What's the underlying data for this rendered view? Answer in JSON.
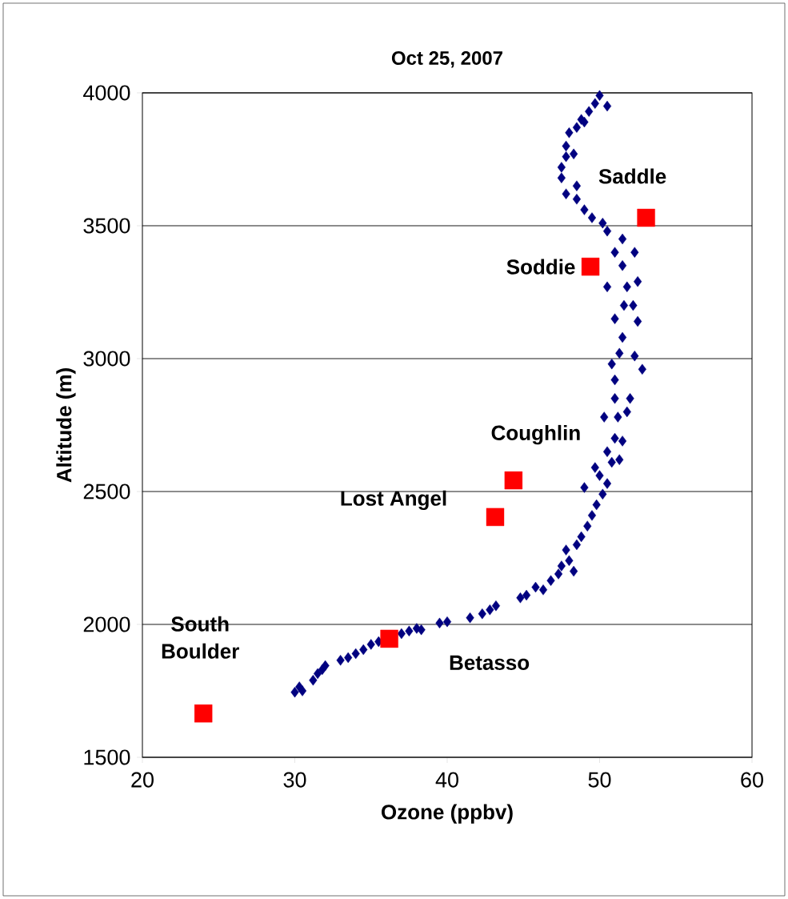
{
  "chart_data": {
    "type": "scatter",
    "title": "Oct 25, 2007",
    "xlabel": "Ozone (ppbv)",
    "ylabel": "Altitude (m)",
    "xlim": [
      20,
      60
    ],
    "ylim": [
      1500,
      4000
    ],
    "xticks": [
      20,
      30,
      40,
      50,
      60
    ],
    "yticks": [
      1500,
      2000,
      2500,
      3000,
      3500,
      4000
    ],
    "grid": "y",
    "series": [
      {
        "color": "#000080",
        "marker": "diamond",
        "x": [
          30,
          30.3,
          30.5,
          31.2,
          31.5,
          31.8,
          32,
          33,
          33.5,
          34,
          34.5,
          35,
          35.5,
          37,
          37.5,
          38,
          38.3,
          39.5,
          40,
          41.5,
          42.3,
          42.8,
          43.2,
          44.8,
          45.2,
          45.8,
          46.3,
          46.8,
          47.3,
          47.5,
          48,
          48.3,
          47.8,
          48.5,
          48.8,
          49.2,
          49.5,
          49.8,
          50.2,
          49,
          50.5,
          50,
          49.7,
          50.8,
          50.5,
          51.3,
          51,
          51.5,
          50.3,
          51.2,
          51,
          51.8,
          51,
          52,
          50.8,
          51.3,
          52.3,
          52.8,
          51.5,
          52.5,
          51,
          51.6,
          52.2,
          50.5,
          51.8,
          52.5,
          51.5,
          52.3,
          51,
          51.5,
          50.5,
          50.2,
          49.5,
          49,
          48.5,
          47.8,
          48.5,
          47.5,
          47.5,
          47.8,
          48.3,
          47.8,
          48,
          48.5,
          49,
          49.3,
          49.7,
          50,
          50.5,
          48.8
        ],
        "values": [
          1745,
          1765,
          1750,
          1790,
          1815,
          1830,
          1845,
          1865,
          1875,
          1890,
          1905,
          1925,
          1935,
          1965,
          1975,
          1985,
          1980,
          2005,
          2010,
          2025,
          2040,
          2055,
          2070,
          2100,
          2110,
          2140,
          2130,
          2165,
          2190,
          2220,
          2240,
          2200,
          2280,
          2300,
          2330,
          2370,
          2410,
          2450,
          2490,
          2515,
          2530,
          2560,
          2590,
          2610,
          2650,
          2620,
          2700,
          2690,
          2780,
          2780,
          2850,
          2800,
          2920,
          2850,
          2980,
          3020,
          3010,
          2960,
          3080,
          3140,
          3150,
          3200,
          3200,
          3270,
          3270,
          3290,
          3350,
          3400,
          3400,
          3450,
          3480,
          3510,
          3530,
          3560,
          3600,
          3620,
          3650,
          3680,
          3720,
          3760,
          3770,
          3800,
          3850,
          3870,
          3890,
          3930,
          3960,
          3990,
          3950,
          3900
        ]
      },
      {
        "color": "#ff0000",
        "marker": "square",
        "x": [
          24.0,
          36.2,
          43.15,
          44.35,
          49.4,
          53.05
        ],
        "values": [
          1665,
          1946,
          2404,
          2542,
          3346,
          3530
        ]
      }
    ],
    "annotations": [
      "South Boulder",
      "Betasso",
      "Lost Angel",
      "Coughlin",
      "Soddie",
      "Saddle"
    ]
  }
}
